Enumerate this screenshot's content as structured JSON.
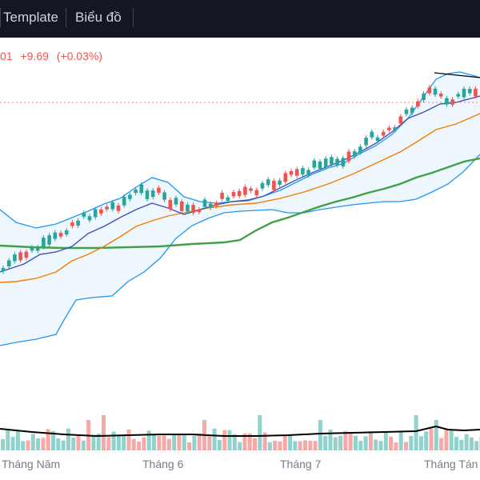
{
  "toolbar": {
    "template_label": "Template",
    "chart_label": "Biểu đồ"
  },
  "quote": {
    "price_tail": "01",
    "change": "+9.69",
    "change_pct": "(+0.03%)"
  },
  "time_axis": {
    "labels": [
      "Tháng Năm",
      "Tháng 6",
      "Tháng 7",
      "Tháng Tán"
    ]
  },
  "colors": {
    "toolbar_bg": "#131722",
    "up": "#26a69a",
    "down": "#ef5350",
    "band": "#2196f3",
    "ma_fast": "#3f51b5",
    "ma_mid": "#f57c00",
    "ma_slow": "#43a047"
  }
}
